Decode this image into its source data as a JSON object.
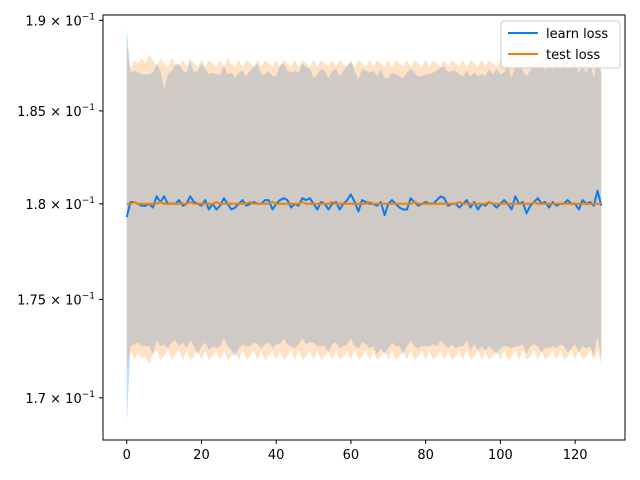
{
  "chart_data": {
    "type": "line",
    "title": "",
    "xlabel": "",
    "ylabel": "",
    "yscale": "log",
    "xlim": [
      -6.35,
      133.35
    ],
    "ylim": [
      0.1679,
      0.1903
    ],
    "grid": false,
    "legend_position": "top-right",
    "x_ticks": [
      0,
      20,
      40,
      60,
      80,
      100,
      120
    ],
    "x_tick_labels": [
      "0",
      "20",
      "40",
      "60",
      "80",
      "100",
      "120"
    ],
    "y_ticks": [
      0.17,
      0.175,
      0.18,
      0.185,
      0.19
    ],
    "y_tick_labels": [
      {
        "coef": "1.7",
        "exp": "−1"
      },
      {
        "coef": "1.75",
        "exp": "−1"
      },
      {
        "coef": "1.8",
        "exp": "−1"
      },
      {
        "coef": "1.85",
        "exp": "−1"
      },
      {
        "coef": "1.9",
        "exp": "−1"
      }
    ],
    "series": [
      {
        "name": "learn loss",
        "color": "#1f77b4",
        "line_color": "#0a7df0",
        "band_color": "#1e90ff",
        "x": [
          0,
          1,
          2,
          3,
          4,
          5,
          6,
          7,
          8,
          9,
          10,
          11,
          12,
          13,
          14,
          15,
          16,
          17,
          18,
          19,
          20,
          21,
          22,
          23,
          24,
          25,
          26,
          27,
          28,
          29,
          30,
          31,
          32,
          33,
          34,
          35,
          36,
          37,
          38,
          39,
          40,
          41,
          42,
          43,
          44,
          45,
          46,
          47,
          48,
          49,
          50,
          51,
          52,
          53,
          54,
          55,
          56,
          57,
          58,
          59,
          60,
          61,
          62,
          63,
          64,
          65,
          66,
          67,
          68,
          69,
          70,
          71,
          72,
          73,
          74,
          75,
          76,
          77,
          78,
          79,
          80,
          81,
          82,
          83,
          84,
          85,
          86,
          87,
          88,
          89,
          90,
          91,
          92,
          93,
          94,
          95,
          96,
          97,
          98,
          99,
          100,
          101,
          102,
          103,
          104,
          105,
          106,
          107,
          108,
          109,
          110,
          111,
          112,
          113,
          114,
          115,
          116,
          117,
          118,
          119,
          120,
          121,
          122,
          123,
          124,
          125,
          126,
          127
        ],
        "y": [
          0.1793,
          0.1801,
          0.1801,
          0.18,
          0.1799,
          0.1799,
          0.18,
          0.1798,
          0.1804,
          0.1801,
          0.1804,
          0.18,
          0.18,
          0.18,
          0.1802,
          0.1799,
          0.18,
          0.1804,
          0.1801,
          0.18,
          0.1799,
          0.1802,
          0.1797,
          0.18,
          0.1797,
          0.1799,
          0.1803,
          0.18,
          0.1797,
          0.1798,
          0.18,
          0.1802,
          0.1799,
          0.18,
          0.1801,
          0.18,
          0.18,
          0.1802,
          0.1802,
          0.1797,
          0.18,
          0.1802,
          0.1803,
          0.1802,
          0.1798,
          0.18,
          0.1799,
          0.1803,
          0.1802,
          0.1803,
          0.18,
          0.1797,
          0.1801,
          0.18,
          0.1797,
          0.18,
          0.1801,
          0.1797,
          0.18,
          0.1802,
          0.1805,
          0.1801,
          0.1796,
          0.1802,
          0.1801,
          0.18,
          0.18,
          0.1799,
          0.1801,
          0.1794,
          0.18,
          0.1802,
          0.18,
          0.1798,
          0.1797,
          0.1797,
          0.1803,
          0.1801,
          0.1799,
          0.18,
          0.1801,
          0.18,
          0.18,
          0.1802,
          0.1804,
          0.1803,
          0.1799,
          0.18,
          0.18,
          0.1798,
          0.18,
          0.1802,
          0.1798,
          0.1801,
          0.1797,
          0.18,
          0.1799,
          0.1801,
          0.18,
          0.1798,
          0.18,
          0.1802,
          0.18,
          0.1797,
          0.1804,
          0.18,
          0.1801,
          0.1795,
          0.1799,
          0.1801,
          0.1803,
          0.18,
          0.1801,
          0.1798,
          0.1801,
          0.1799,
          0.18,
          0.18,
          0.1802,
          0.18,
          0.18,
          0.1797,
          0.1802,
          0.18,
          0.1801,
          0.1799,
          0.1807,
          0.1799
        ],
        "y_upper": [
          0.1895,
          0.1871,
          0.1872,
          0.1871,
          0.187,
          0.187,
          0.187,
          0.1871,
          0.1876,
          0.1872,
          0.1862,
          0.187,
          0.1872,
          0.1875,
          0.1876,
          0.1872,
          0.1871,
          0.1877,
          0.1871,
          0.1872,
          0.1876,
          0.1873,
          0.187,
          0.1871,
          0.187,
          0.187,
          0.1875,
          0.187,
          0.1871,
          0.1868,
          0.1871,
          0.1872,
          0.1869,
          0.1872,
          0.1874,
          0.1876,
          0.187,
          0.187,
          0.1872,
          0.1869,
          0.1869,
          0.1875,
          0.1876,
          0.1872,
          0.1871,
          0.1872,
          0.1871,
          0.1876,
          0.1874,
          0.1873,
          0.1868,
          0.187,
          0.1873,
          0.1872,
          0.1868,
          0.1872,
          0.1873,
          0.1869,
          0.1872,
          0.1875,
          0.1877,
          0.1872,
          0.1867,
          0.1873,
          0.1872,
          0.1871,
          0.1872,
          0.1869,
          0.1873,
          0.1868,
          0.1868,
          0.1871,
          0.187,
          0.1869,
          0.1868,
          0.1871,
          0.1873,
          0.1871,
          0.1869,
          0.1869,
          0.187,
          0.187,
          0.1871,
          0.1872,
          0.1874,
          0.1874,
          0.1871,
          0.1872,
          0.1872,
          0.187,
          0.1869,
          0.1872,
          0.1869,
          0.1871,
          0.1869,
          0.187,
          0.1869,
          0.1873,
          0.187,
          0.1873,
          0.187,
          0.1871,
          0.1875,
          0.1868,
          0.1874,
          0.1875,
          0.1872,
          0.1869,
          0.1872,
          0.1876,
          0.1874,
          0.1876,
          0.1872,
          0.1875,
          0.1872,
          0.1876,
          0.1874,
          0.1876,
          0.1873,
          0.1875,
          0.1876,
          0.1871,
          0.1874,
          0.1871,
          0.1876,
          0.1868,
          0.1878,
          0.1871
        ],
        "y_lower": [
          0.1687,
          0.1726,
          0.1727,
          0.1728,
          0.1726,
          0.1726,
          0.1726,
          0.1722,
          0.1729,
          0.1726,
          0.1727,
          0.1725,
          0.1728,
          0.1729,
          0.1726,
          0.1728,
          0.1725,
          0.1729,
          0.1726,
          0.1722,
          0.1726,
          0.1728,
          0.1724,
          0.1726,
          0.1725,
          0.1726,
          0.173,
          0.1726,
          0.1724,
          0.1721,
          0.1725,
          0.1727,
          0.1726,
          0.1726,
          0.1728,
          0.1727,
          0.1725,
          0.1727,
          0.1728,
          0.1725,
          0.1727,
          0.1727,
          0.173,
          0.1727,
          0.1726,
          0.1725,
          0.1727,
          0.173,
          0.1727,
          0.1728,
          0.1728,
          0.1726,
          0.1726,
          0.1726,
          0.1723,
          0.1727,
          0.1728,
          0.1725,
          0.1726,
          0.1727,
          0.173,
          0.1726,
          0.1725,
          0.1728,
          0.1727,
          0.1725,
          0.1726,
          0.1722,
          0.1725,
          0.1722,
          0.1725,
          0.1728,
          0.1726,
          0.1726,
          0.1722,
          0.1726,
          0.1729,
          0.1726,
          0.1725,
          0.1726,
          0.1726,
          0.1726,
          0.1727,
          0.1726,
          0.1729,
          0.1727,
          0.1725,
          0.1727,
          0.1725,
          0.1726,
          0.1726,
          0.1729,
          0.1724,
          0.1727,
          0.1724,
          0.1726,
          0.1724,
          0.1726,
          0.1724,
          0.1722,
          0.1725,
          0.1726,
          0.1726,
          0.1725,
          0.1726,
          0.1726,
          0.1727,
          0.1722,
          0.1726,
          0.1727,
          0.1726,
          0.1723,
          0.1725,
          0.1725,
          0.1726,
          0.1725,
          0.1727,
          0.1726,
          0.1723,
          0.1725,
          0.1727,
          0.1723,
          0.1726,
          0.1725,
          0.1726,
          0.1721,
          0.1731,
          0.172
        ]
      },
      {
        "name": "test loss",
        "color": "#ff7f0e",
        "line_color": "#f07f0a",
        "band_color": "#ff9f40",
        "x": [
          0,
          1,
          2,
          3,
          4,
          5,
          6,
          7,
          8,
          9,
          10,
          11,
          12,
          13,
          14,
          15,
          16,
          17,
          18,
          19,
          20,
          21,
          22,
          23,
          24,
          25,
          26,
          27,
          28,
          29,
          30,
          31,
          32,
          33,
          34,
          35,
          36,
          37,
          38,
          39,
          40,
          41,
          42,
          43,
          44,
          45,
          46,
          47,
          48,
          49,
          50,
          51,
          52,
          53,
          54,
          55,
          56,
          57,
          58,
          59,
          60,
          61,
          62,
          63,
          64,
          65,
          66,
          67,
          68,
          69,
          70,
          71,
          72,
          73,
          74,
          75,
          76,
          77,
          78,
          79,
          80,
          81,
          82,
          83,
          84,
          85,
          86,
          87,
          88,
          89,
          90,
          91,
          92,
          93,
          94,
          95,
          96,
          97,
          98,
          99,
          100,
          101,
          102,
          103,
          104,
          105,
          106,
          107,
          108,
          109,
          110,
          111,
          112,
          113,
          114,
          115,
          116,
          117,
          118,
          119,
          120,
          121,
          122,
          123,
          124,
          125,
          126,
          127
        ],
        "y": [
          0.18,
          0.18,
          0.1801,
          0.18,
          0.18,
          0.18,
          0.18,
          0.18,
          0.18,
          0.1801,
          0.18,
          0.18,
          0.18,
          0.18,
          0.18,
          0.18,
          0.18,
          0.1801,
          0.18,
          0.18,
          0.18,
          0.18,
          0.18,
          0.18,
          0.1801,
          0.18,
          0.18,
          0.18,
          0.18,
          0.18,
          0.18,
          0.18,
          0.18,
          0.1801,
          0.18,
          0.18,
          0.18,
          0.18,
          0.18,
          0.1801,
          0.18,
          0.18,
          0.18,
          0.18,
          0.18,
          0.18,
          0.18,
          0.1801,
          0.18,
          0.18,
          0.18,
          0.18,
          0.18,
          0.18,
          0.18,
          0.1801,
          0.18,
          0.18,
          0.18,
          0.18,
          0.18,
          0.18,
          0.18,
          0.18,
          0.18,
          0.1801,
          0.18,
          0.18,
          0.18,
          0.18,
          0.18,
          0.18,
          0.18,
          0.18,
          0.18,
          0.18,
          0.18,
          0.1801,
          0.18,
          0.18,
          0.18,
          0.18,
          0.18,
          0.18,
          0.18,
          0.18,
          0.18,
          0.18,
          0.18,
          0.1801,
          0.18,
          0.18,
          0.18,
          0.18,
          0.18,
          0.18,
          0.18,
          0.1801,
          0.18,
          0.18,
          0.18,
          0.18,
          0.18,
          0.18,
          0.18,
          0.18,
          0.18,
          0.18,
          0.18,
          0.1801,
          0.18,
          0.18,
          0.18,
          0.18,
          0.18,
          0.18,
          0.18,
          0.18,
          0.18,
          0.18,
          0.18,
          0.18,
          0.18,
          0.18,
          0.18,
          0.18,
          0.18,
          0.18
        ],
        "y_upper": [
          0.1885,
          0.1873,
          0.1878,
          0.1876,
          0.1879,
          0.1876,
          0.1881,
          0.1878,
          0.1874,
          0.1879,
          0.1876,
          0.1874,
          0.1879,
          0.1876,
          0.1874,
          0.1878,
          0.1874,
          0.1879,
          0.1876,
          0.1874,
          0.1878,
          0.1874,
          0.1878,
          0.1876,
          0.1874,
          0.1878,
          0.1874,
          0.1879,
          0.1876,
          0.1874,
          0.1878,
          0.1874,
          0.1878,
          0.1876,
          0.1874,
          0.1878,
          0.1874,
          0.1878,
          0.1876,
          0.1874,
          0.1878,
          0.1874,
          0.1878,
          0.1876,
          0.1874,
          0.1878,
          0.1874,
          0.1878,
          0.1876,
          0.1874,
          0.1878,
          0.1874,
          0.1878,
          0.1876,
          0.1874,
          0.1878,
          0.1874,
          0.1878,
          0.1876,
          0.1874,
          0.1878,
          0.1874,
          0.1878,
          0.1876,
          0.1874,
          0.1878,
          0.1874,
          0.1878,
          0.1876,
          0.1874,
          0.1878,
          0.1874,
          0.1878,
          0.1876,
          0.1874,
          0.1878,
          0.1874,
          0.1878,
          0.1876,
          0.1874,
          0.1878,
          0.1874,
          0.1878,
          0.1876,
          0.1874,
          0.1878,
          0.1874,
          0.1878,
          0.1876,
          0.1874,
          0.1878,
          0.1874,
          0.1878,
          0.1876,
          0.1874,
          0.1878,
          0.1874,
          0.1878,
          0.1876,
          0.1874,
          0.1878,
          0.1874,
          0.1878,
          0.1876,
          0.1874,
          0.1878,
          0.1874,
          0.1878,
          0.1876,
          0.1874,
          0.1878,
          0.1874,
          0.1878,
          0.1876,
          0.1874,
          0.1878,
          0.1874,
          0.1878,
          0.1876,
          0.1874,
          0.1878,
          0.1874,
          0.1878,
          0.1876,
          0.1874,
          0.1878,
          0.1874,
          0.1876
        ],
        "y_lower": [
          0.1715,
          0.1724,
          0.1719,
          0.1723,
          0.172,
          0.1721,
          0.1717,
          0.1722,
          0.1724,
          0.1719,
          0.1721,
          0.1725,
          0.1719,
          0.1722,
          0.1724,
          0.1719,
          0.1724,
          0.1719,
          0.1721,
          0.1724,
          0.1719,
          0.1724,
          0.1719,
          0.1721,
          0.1724,
          0.1719,
          0.1724,
          0.1719,
          0.1721,
          0.1724,
          0.1719,
          0.1724,
          0.1719,
          0.1721,
          0.1724,
          0.1719,
          0.1724,
          0.1719,
          0.1721,
          0.1724,
          0.1719,
          0.1724,
          0.1719,
          0.1721,
          0.1724,
          0.1719,
          0.1724,
          0.1719,
          0.1721,
          0.1724,
          0.1719,
          0.1724,
          0.1719,
          0.1721,
          0.1724,
          0.1719,
          0.1724,
          0.1719,
          0.1721,
          0.1724,
          0.1719,
          0.1724,
          0.1719,
          0.1721,
          0.1724,
          0.1719,
          0.1724,
          0.1719,
          0.1721,
          0.1724,
          0.1719,
          0.1724,
          0.1719,
          0.1721,
          0.1724,
          0.1719,
          0.1724,
          0.1719,
          0.1721,
          0.1724,
          0.1719,
          0.1724,
          0.1719,
          0.1721,
          0.1724,
          0.1719,
          0.1724,
          0.1719,
          0.1721,
          0.1724,
          0.1719,
          0.1724,
          0.1719,
          0.1721,
          0.1724,
          0.1719,
          0.1724,
          0.1719,
          0.1721,
          0.1724,
          0.1719,
          0.1724,
          0.1719,
          0.1721,
          0.1724,
          0.1719,
          0.1724,
          0.1719,
          0.1721,
          0.1724,
          0.1719,
          0.1724,
          0.1719,
          0.1721,
          0.1724,
          0.1719,
          0.1724,
          0.1719,
          0.1721,
          0.1724,
          0.1719,
          0.1724,
          0.1719,
          0.1721,
          0.1724,
          0.1719,
          0.1724,
          0.1717
        ]
      }
    ]
  }
}
